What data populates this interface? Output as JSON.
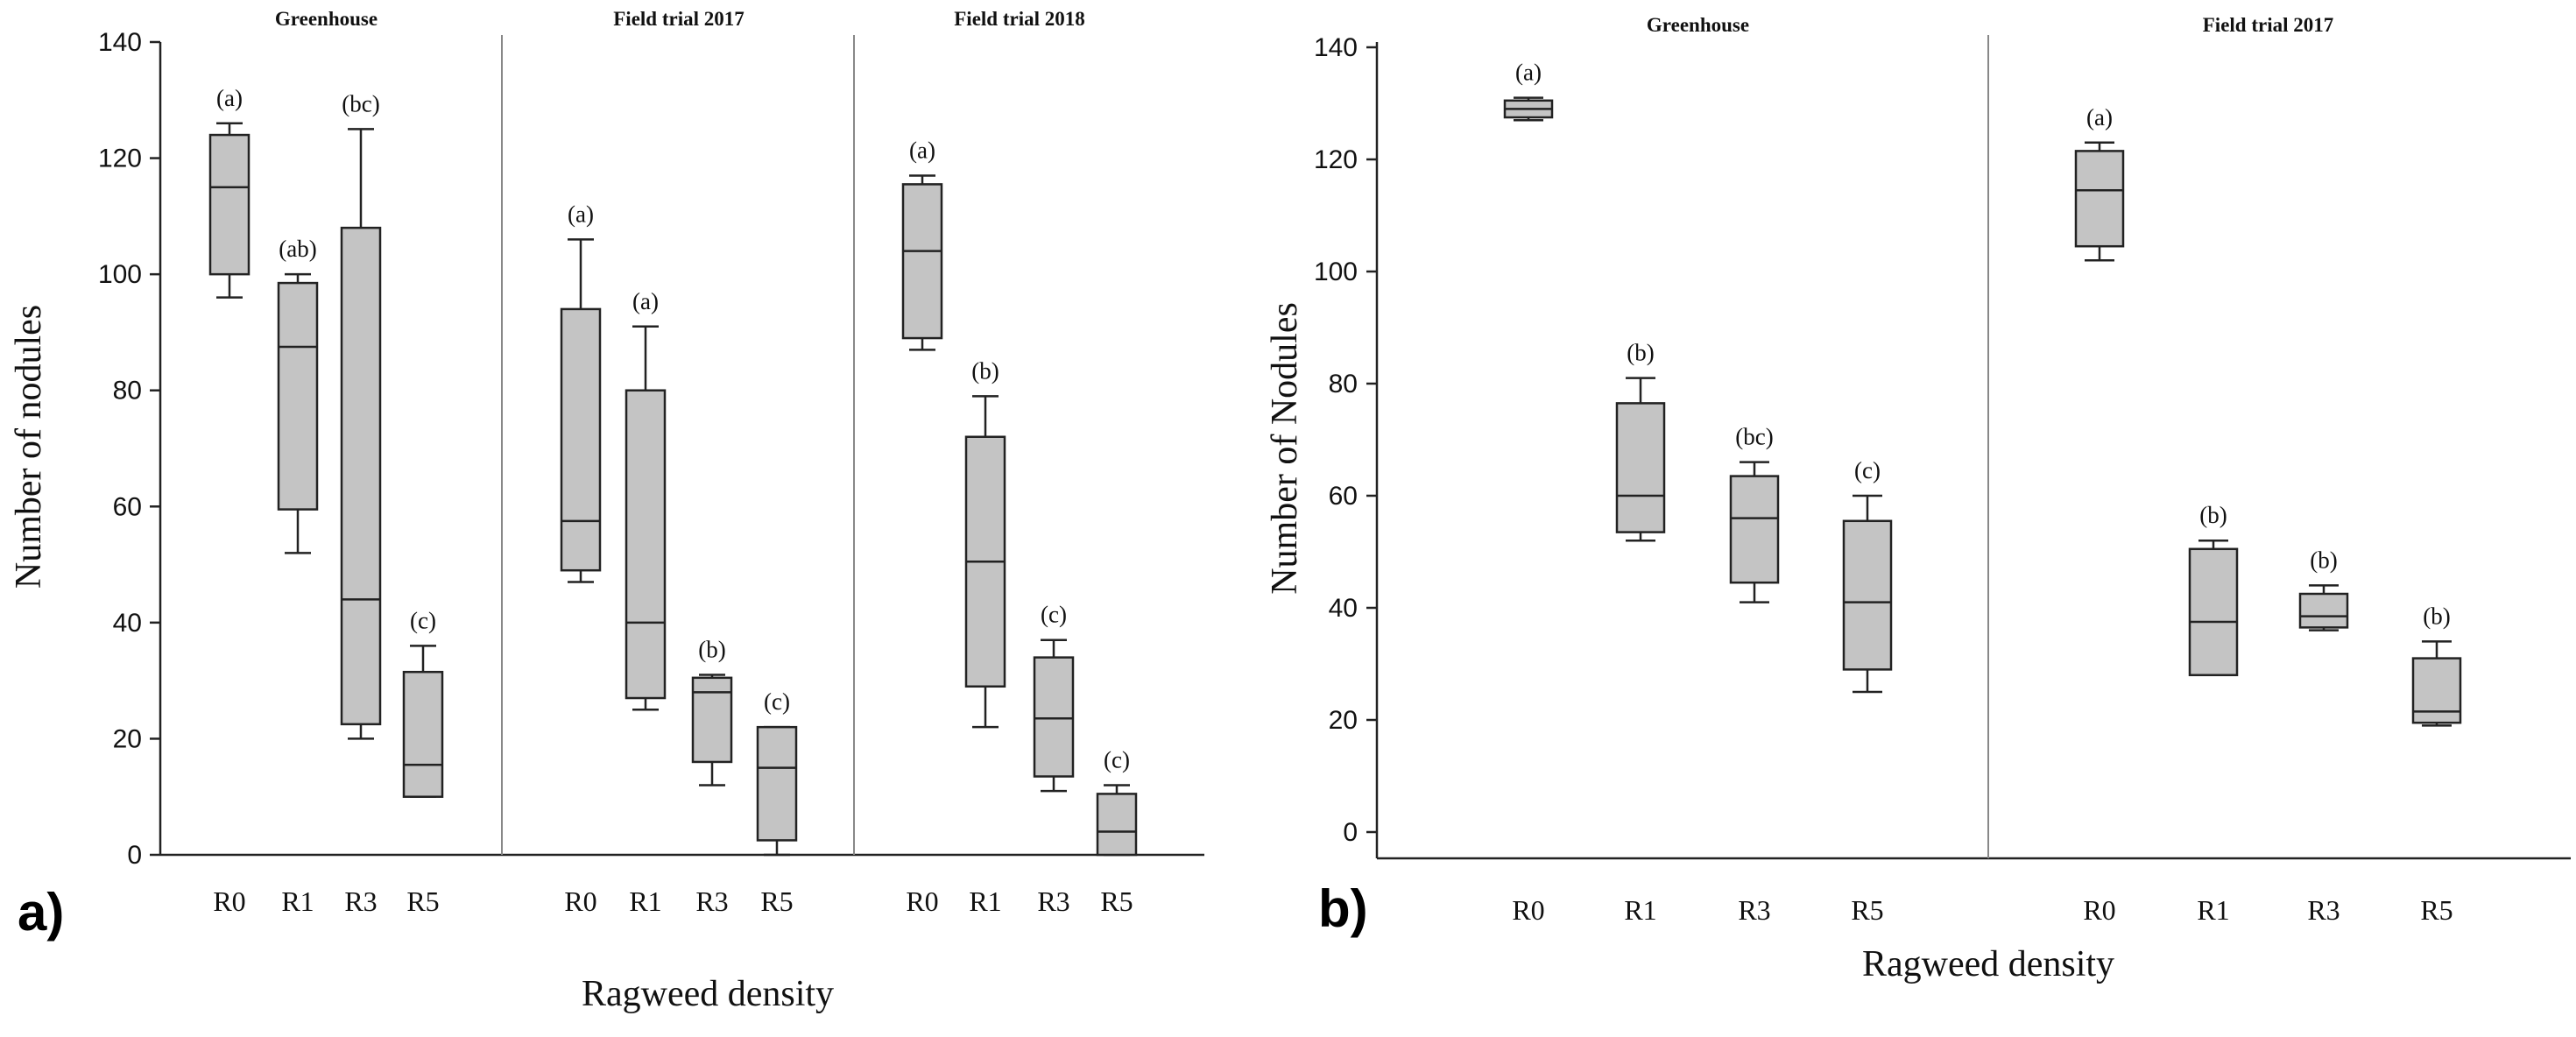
{
  "colors": {
    "box_fill": "#c4c4c4",
    "stroke": "#222222",
    "background": "#ffffff"
  },
  "chart_data": [
    {
      "type": "boxplot",
      "panel_label": "a)",
      "ylabel": "Number of nodules",
      "xlabel": "Ragweed density",
      "ylim": [
        0,
        140
      ],
      "yticks": [
        0,
        20,
        40,
        60,
        80,
        100,
        120,
        140
      ],
      "categories": [
        "R0",
        "R1",
        "R3",
        "R5"
      ],
      "groups": [
        {
          "name": "Greenhouse",
          "boxes": [
            {
              "category": "R0",
              "min": 96,
              "q1": 100,
              "median": 115,
              "q3": 124,
              "max": 126,
              "letter": "(a)"
            },
            {
              "category": "R1",
              "min": 52,
              "q1": 59.5,
              "median": 87.5,
              "q3": 98.5,
              "max": 100,
              "letter": "(ab)"
            },
            {
              "category": "R3",
              "min": 20,
              "q1": 22.5,
              "median": 44,
              "q3": 108,
              "max": 125,
              "letter": "(bc)"
            },
            {
              "category": "R5",
              "min": 10,
              "q1": 10,
              "median": 15.5,
              "q3": 31.5,
              "max": 36,
              "letter": "(c)"
            }
          ]
        },
        {
          "name": "Field trial 2017",
          "boxes": [
            {
              "category": "R0",
              "min": 47,
              "q1": 49,
              "median": 57.5,
              "q3": 94,
              "max": 106,
              "letter": "(a)"
            },
            {
              "category": "R1",
              "min": 25,
              "q1": 27,
              "median": 40,
              "q3": 80,
              "max": 91,
              "letter": "(a)"
            },
            {
              "category": "R3",
              "min": 12,
              "q1": 16,
              "median": 28,
              "q3": 30.5,
              "max": 31,
              "letter": "(b)"
            },
            {
              "category": "R5",
              "min": 0,
              "q1": 2.5,
              "median": 15,
              "q3": 22,
              "max": 22,
              "letter": "(c)"
            }
          ]
        },
        {
          "name": "Field trial 2018",
          "boxes": [
            {
              "category": "R0",
              "min": 87,
              "q1": 89,
              "median": 104,
              "q3": 115.5,
              "max": 117,
              "letter": "(a)"
            },
            {
              "category": "R1",
              "min": 22,
              "q1": 29,
              "median": 50.5,
              "q3": 72,
              "max": 79,
              "letter": "(b)"
            },
            {
              "category": "R3",
              "min": 11,
              "q1": 13.5,
              "median": 23.5,
              "q3": 34,
              "max": 37,
              "letter": "(c)"
            },
            {
              "category": "R5",
              "min": 0,
              "q1": 0,
              "median": 4,
              "q3": 10.5,
              "max": 12,
              "letter": "(c)"
            }
          ]
        }
      ]
    },
    {
      "type": "boxplot",
      "panel_label": "b)",
      "ylabel": "Number of  Nodules",
      "xlabel": "Ragweed density",
      "ylim": [
        0,
        140
      ],
      "yticks": [
        0,
        20,
        40,
        60,
        80,
        100,
        120,
        140
      ],
      "categories": [
        "R0",
        "R1",
        "R3",
        "R5"
      ],
      "groups": [
        {
          "name": "Greenhouse",
          "boxes": [
            {
              "category": "R0",
              "min": 127,
              "q1": 127.5,
              "median": 129,
              "q3": 130.5,
              "max": 131,
              "letter": "(a)"
            },
            {
              "category": "R1",
              "min": 52,
              "q1": 53.5,
              "median": 60,
              "q3": 76.5,
              "max": 81,
              "letter": "(b)"
            },
            {
              "category": "R3",
              "min": 41,
              "q1": 44.5,
              "median": 56,
              "q3": 63.5,
              "max": 66,
              "letter": "(bc)"
            },
            {
              "category": "R5",
              "min": 25,
              "q1": 29,
              "median": 41,
              "q3": 55.5,
              "max": 60,
              "letter": "(c)"
            }
          ]
        },
        {
          "name": "Field trial 2017",
          "boxes": [
            {
              "category": "R0",
              "min": 102,
              "q1": 104.5,
              "median": 114.5,
              "q3": 121.5,
              "max": 123,
              "letter": "(a)"
            },
            {
              "category": "R1",
              "min": 28,
              "q1": 28,
              "median": 37.5,
              "q3": 50.5,
              "max": 52,
              "letter": "(b)"
            },
            {
              "category": "R3",
              "min": 36,
              "q1": 36.5,
              "median": 38.5,
              "q3": 42.5,
              "max": 44,
              "letter": "(b)"
            },
            {
              "category": "R5",
              "min": 19,
              "q1": 19.5,
              "median": 21.5,
              "q3": 31,
              "max": 34,
              "letter": "(b)"
            }
          ]
        }
      ]
    }
  ]
}
